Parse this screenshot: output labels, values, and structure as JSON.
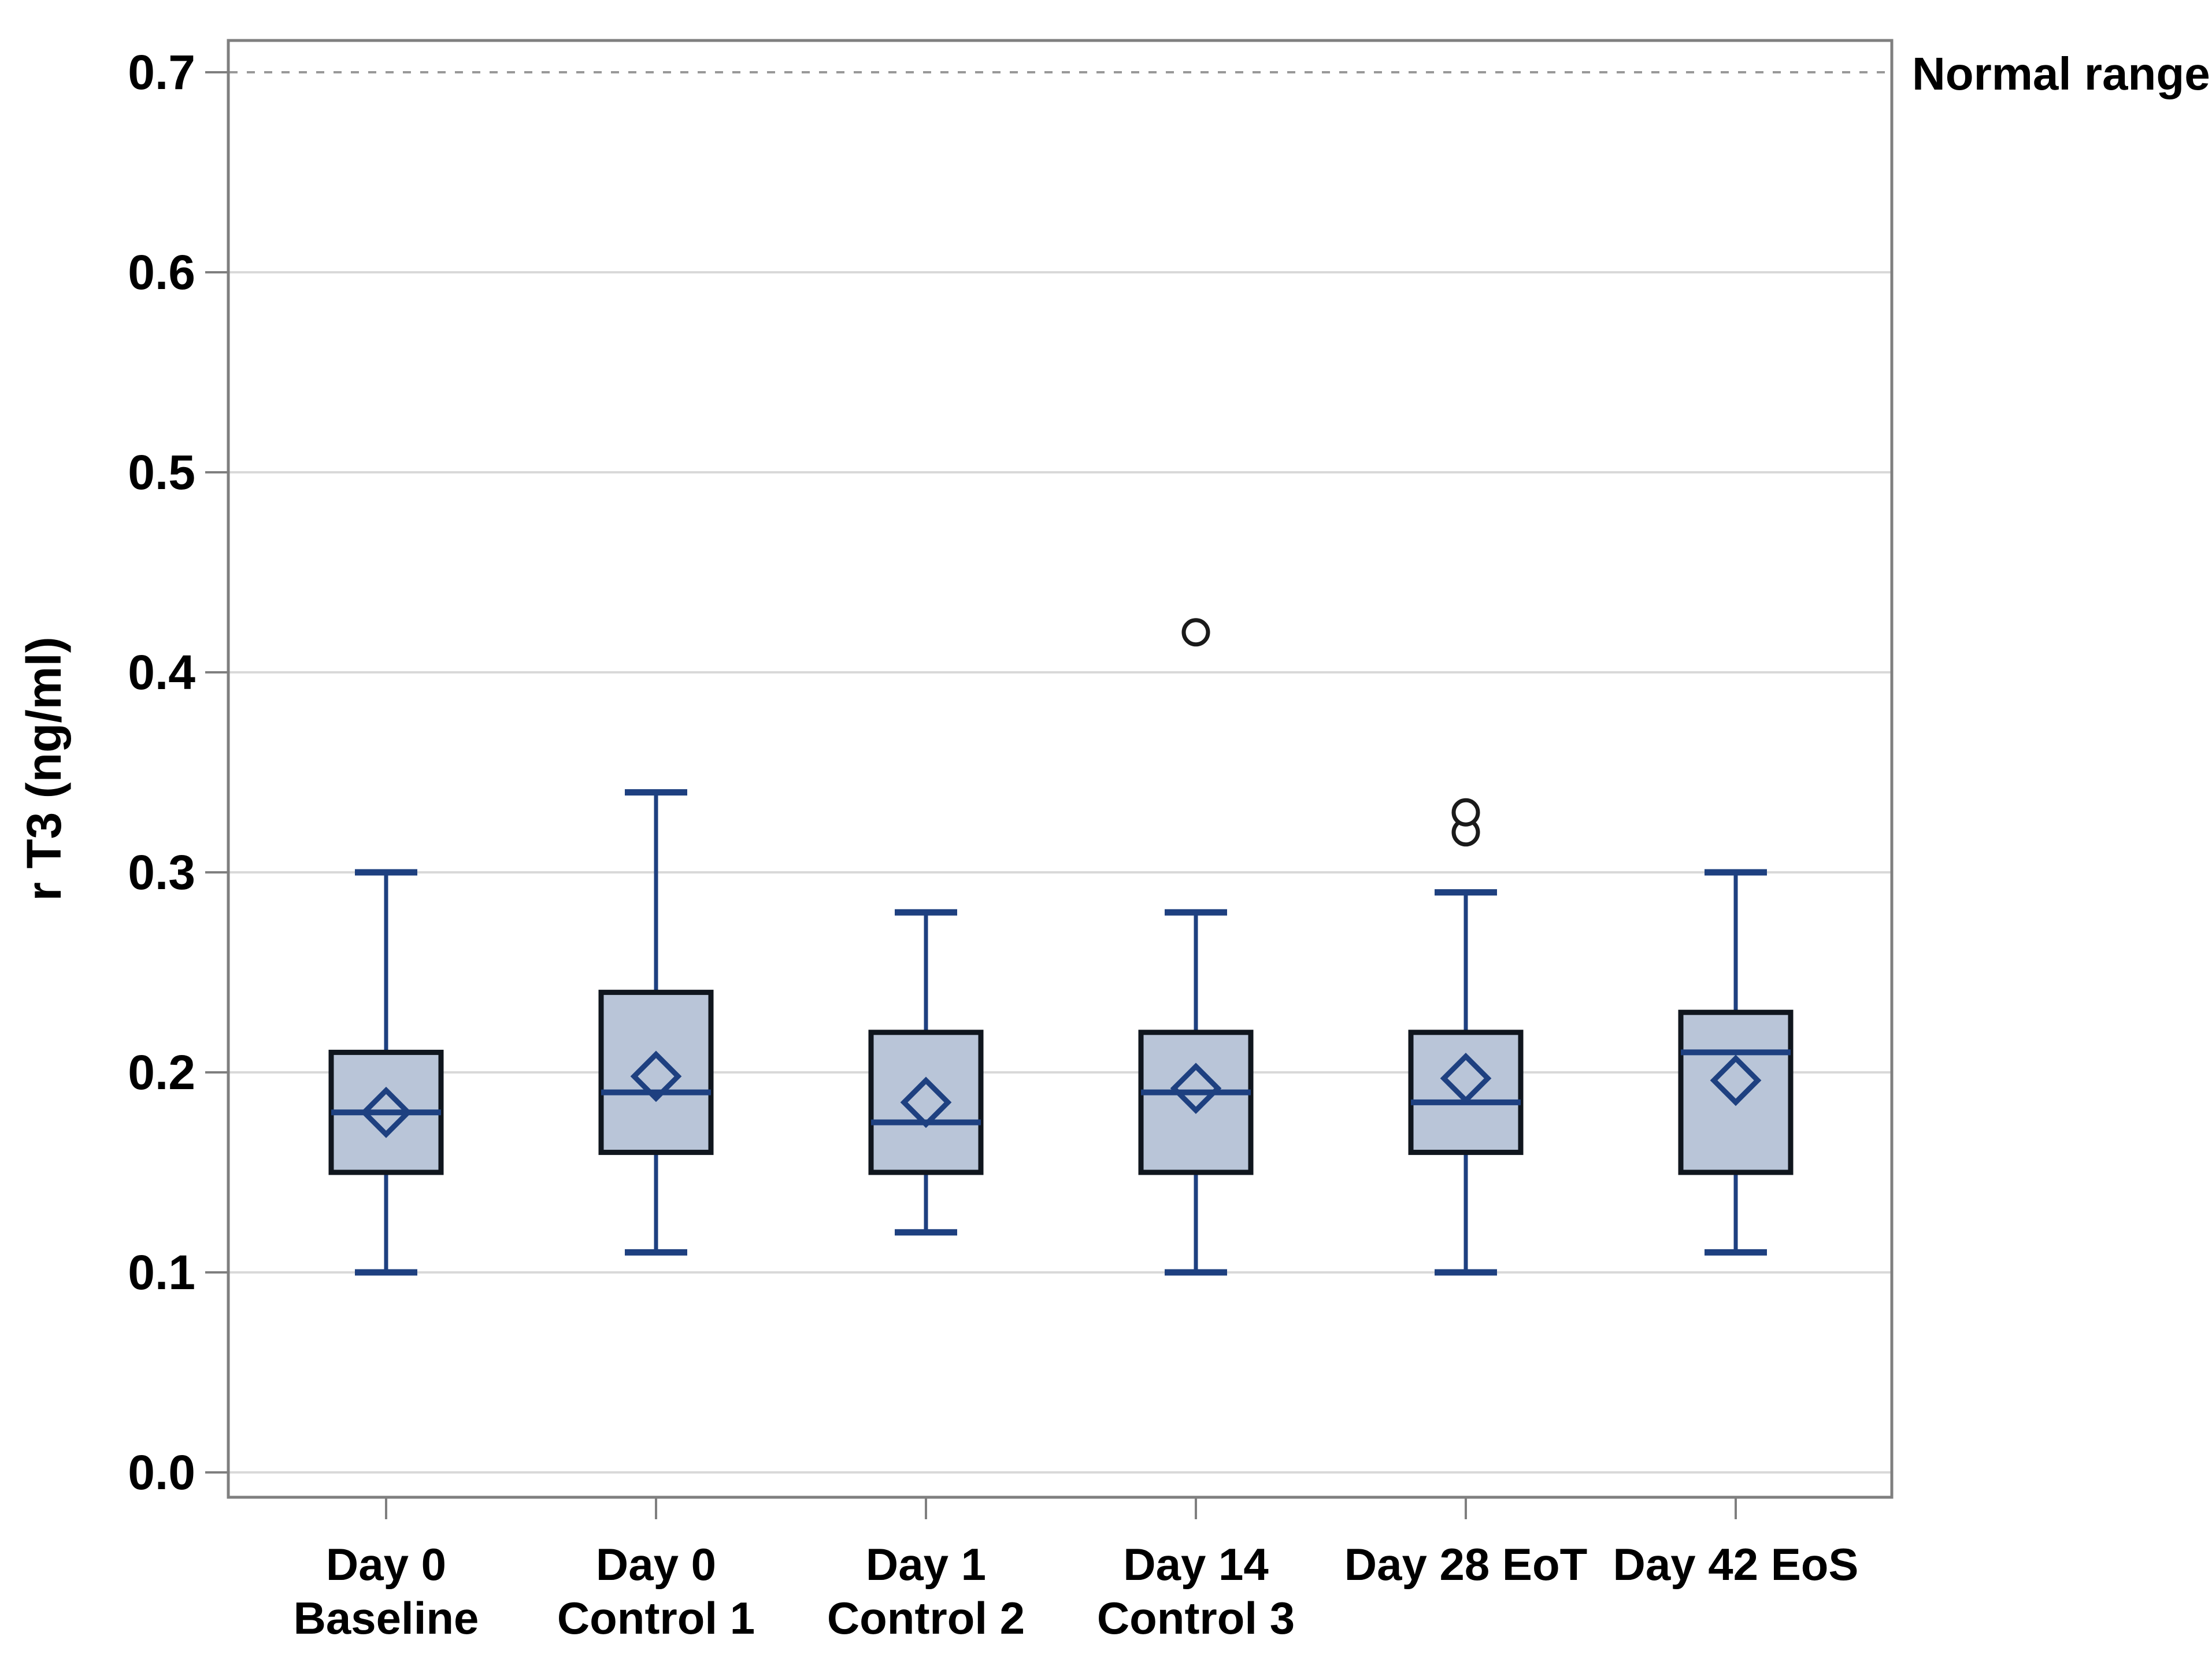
{
  "chart_data": {
    "type": "box",
    "title": "",
    "xlabel": "",
    "ylabel": "r T3 (ng/ml)",
    "ylim": [
      0.0,
      0.7
    ],
    "yticks": [
      0.0,
      0.1,
      0.2,
      0.3,
      0.4,
      0.5,
      0.6,
      0.7
    ],
    "ytick_labels": [
      "0.0",
      "0.1",
      "0.2",
      "0.3",
      "0.4",
      "0.5",
      "0.6",
      "0.7"
    ],
    "grid": true,
    "legend": "none",
    "reference_line": {
      "value": 0.7,
      "label": "Normal range",
      "style": "dashed"
    },
    "categories": [
      [
        "Day 0",
        "Baseline"
      ],
      [
        "Day 0",
        "Control 1"
      ],
      [
        "Day 1",
        "Control 2"
      ],
      [
        "Day 14",
        "Control 3"
      ],
      [
        "Day 28 EoT"
      ],
      [
        "Day 42 EoS"
      ]
    ],
    "series": [
      {
        "name": "Day 0 Baseline",
        "low": 0.1,
        "q1": 0.15,
        "median": 0.18,
        "mean": 0.18,
        "q3": 0.21,
        "high": 0.3,
        "outliers": []
      },
      {
        "name": "Day 0 Control 1",
        "low": 0.11,
        "q1": 0.16,
        "median": 0.19,
        "mean": 0.198,
        "q3": 0.24,
        "high": 0.34,
        "outliers": []
      },
      {
        "name": "Day 1 Control 2",
        "low": 0.12,
        "q1": 0.15,
        "median": 0.175,
        "mean": 0.185,
        "q3": 0.22,
        "high": 0.28,
        "outliers": []
      },
      {
        "name": "Day 14 Control 3",
        "low": 0.1,
        "q1": 0.15,
        "median": 0.19,
        "mean": 0.192,
        "q3": 0.22,
        "high": 0.28,
        "outliers": [
          0.42
        ]
      },
      {
        "name": "Day 28 EoT",
        "low": 0.1,
        "q1": 0.16,
        "median": 0.185,
        "mean": 0.197,
        "q3": 0.22,
        "high": 0.29,
        "outliers": [
          0.32,
          0.33
        ]
      },
      {
        "name": "Day 42 EoS",
        "low": 0.11,
        "q1": 0.15,
        "median": 0.21,
        "mean": 0.196,
        "q3": 0.23,
        "high": 0.3,
        "outliers": []
      }
    ],
    "colors": {
      "box_fill": "#b9c5d8",
      "box_border": "#10161e",
      "line": "#1e4080",
      "grid": "#d9d9d9",
      "frame": "#7f7f7f",
      "dashed": "#999999",
      "outlier": "#1a1a1a",
      "text": "#000000",
      "background": "#ffffff"
    }
  }
}
